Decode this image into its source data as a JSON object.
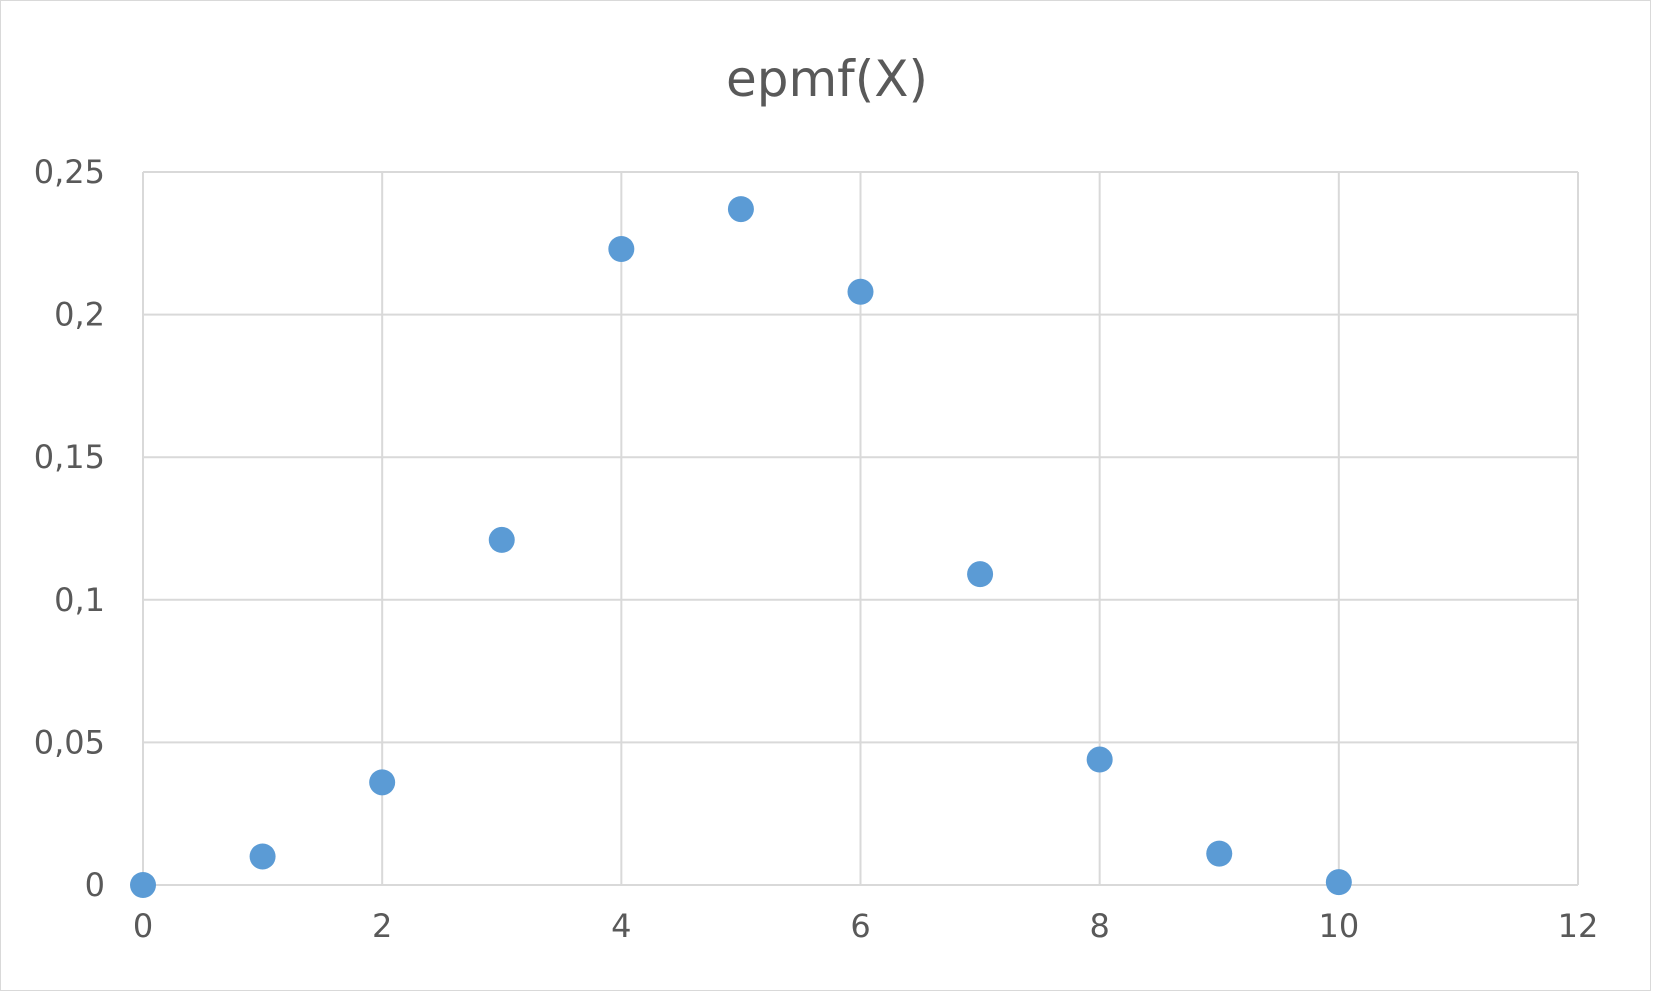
{
  "chart_data": {
    "type": "scatter",
    "title": "epmf(X)",
    "xlabel": "",
    "ylabel": "",
    "xlim": [
      0,
      12
    ],
    "ylim": [
      0,
      0.25
    ],
    "x_ticks": [
      0,
      2,
      4,
      6,
      8,
      10,
      12
    ],
    "x_tick_labels": [
      "0",
      "2",
      "4",
      "6",
      "8",
      "10",
      "12"
    ],
    "y_ticks": [
      0,
      0.05,
      0.1,
      0.15,
      0.2,
      0.25
    ],
    "y_tick_labels": [
      "0",
      "0,05",
      "0,1",
      "0,15",
      "0,2",
      "0,25"
    ],
    "grid": true,
    "legend": "none",
    "series": [
      {
        "color": "#5b9bd5",
        "x": [
          0,
          1,
          2,
          3,
          4,
          5,
          6,
          7,
          8,
          9,
          10
        ],
        "y": [
          0,
          0.01,
          0.036,
          0.121,
          0.223,
          0.237,
          0.208,
          0.109,
          0.044,
          0.011,
          0.001
        ]
      }
    ]
  },
  "colors": {
    "grid": "#d9d9d9",
    "text": "#595959",
    "marker": "#5b9bd5"
  }
}
